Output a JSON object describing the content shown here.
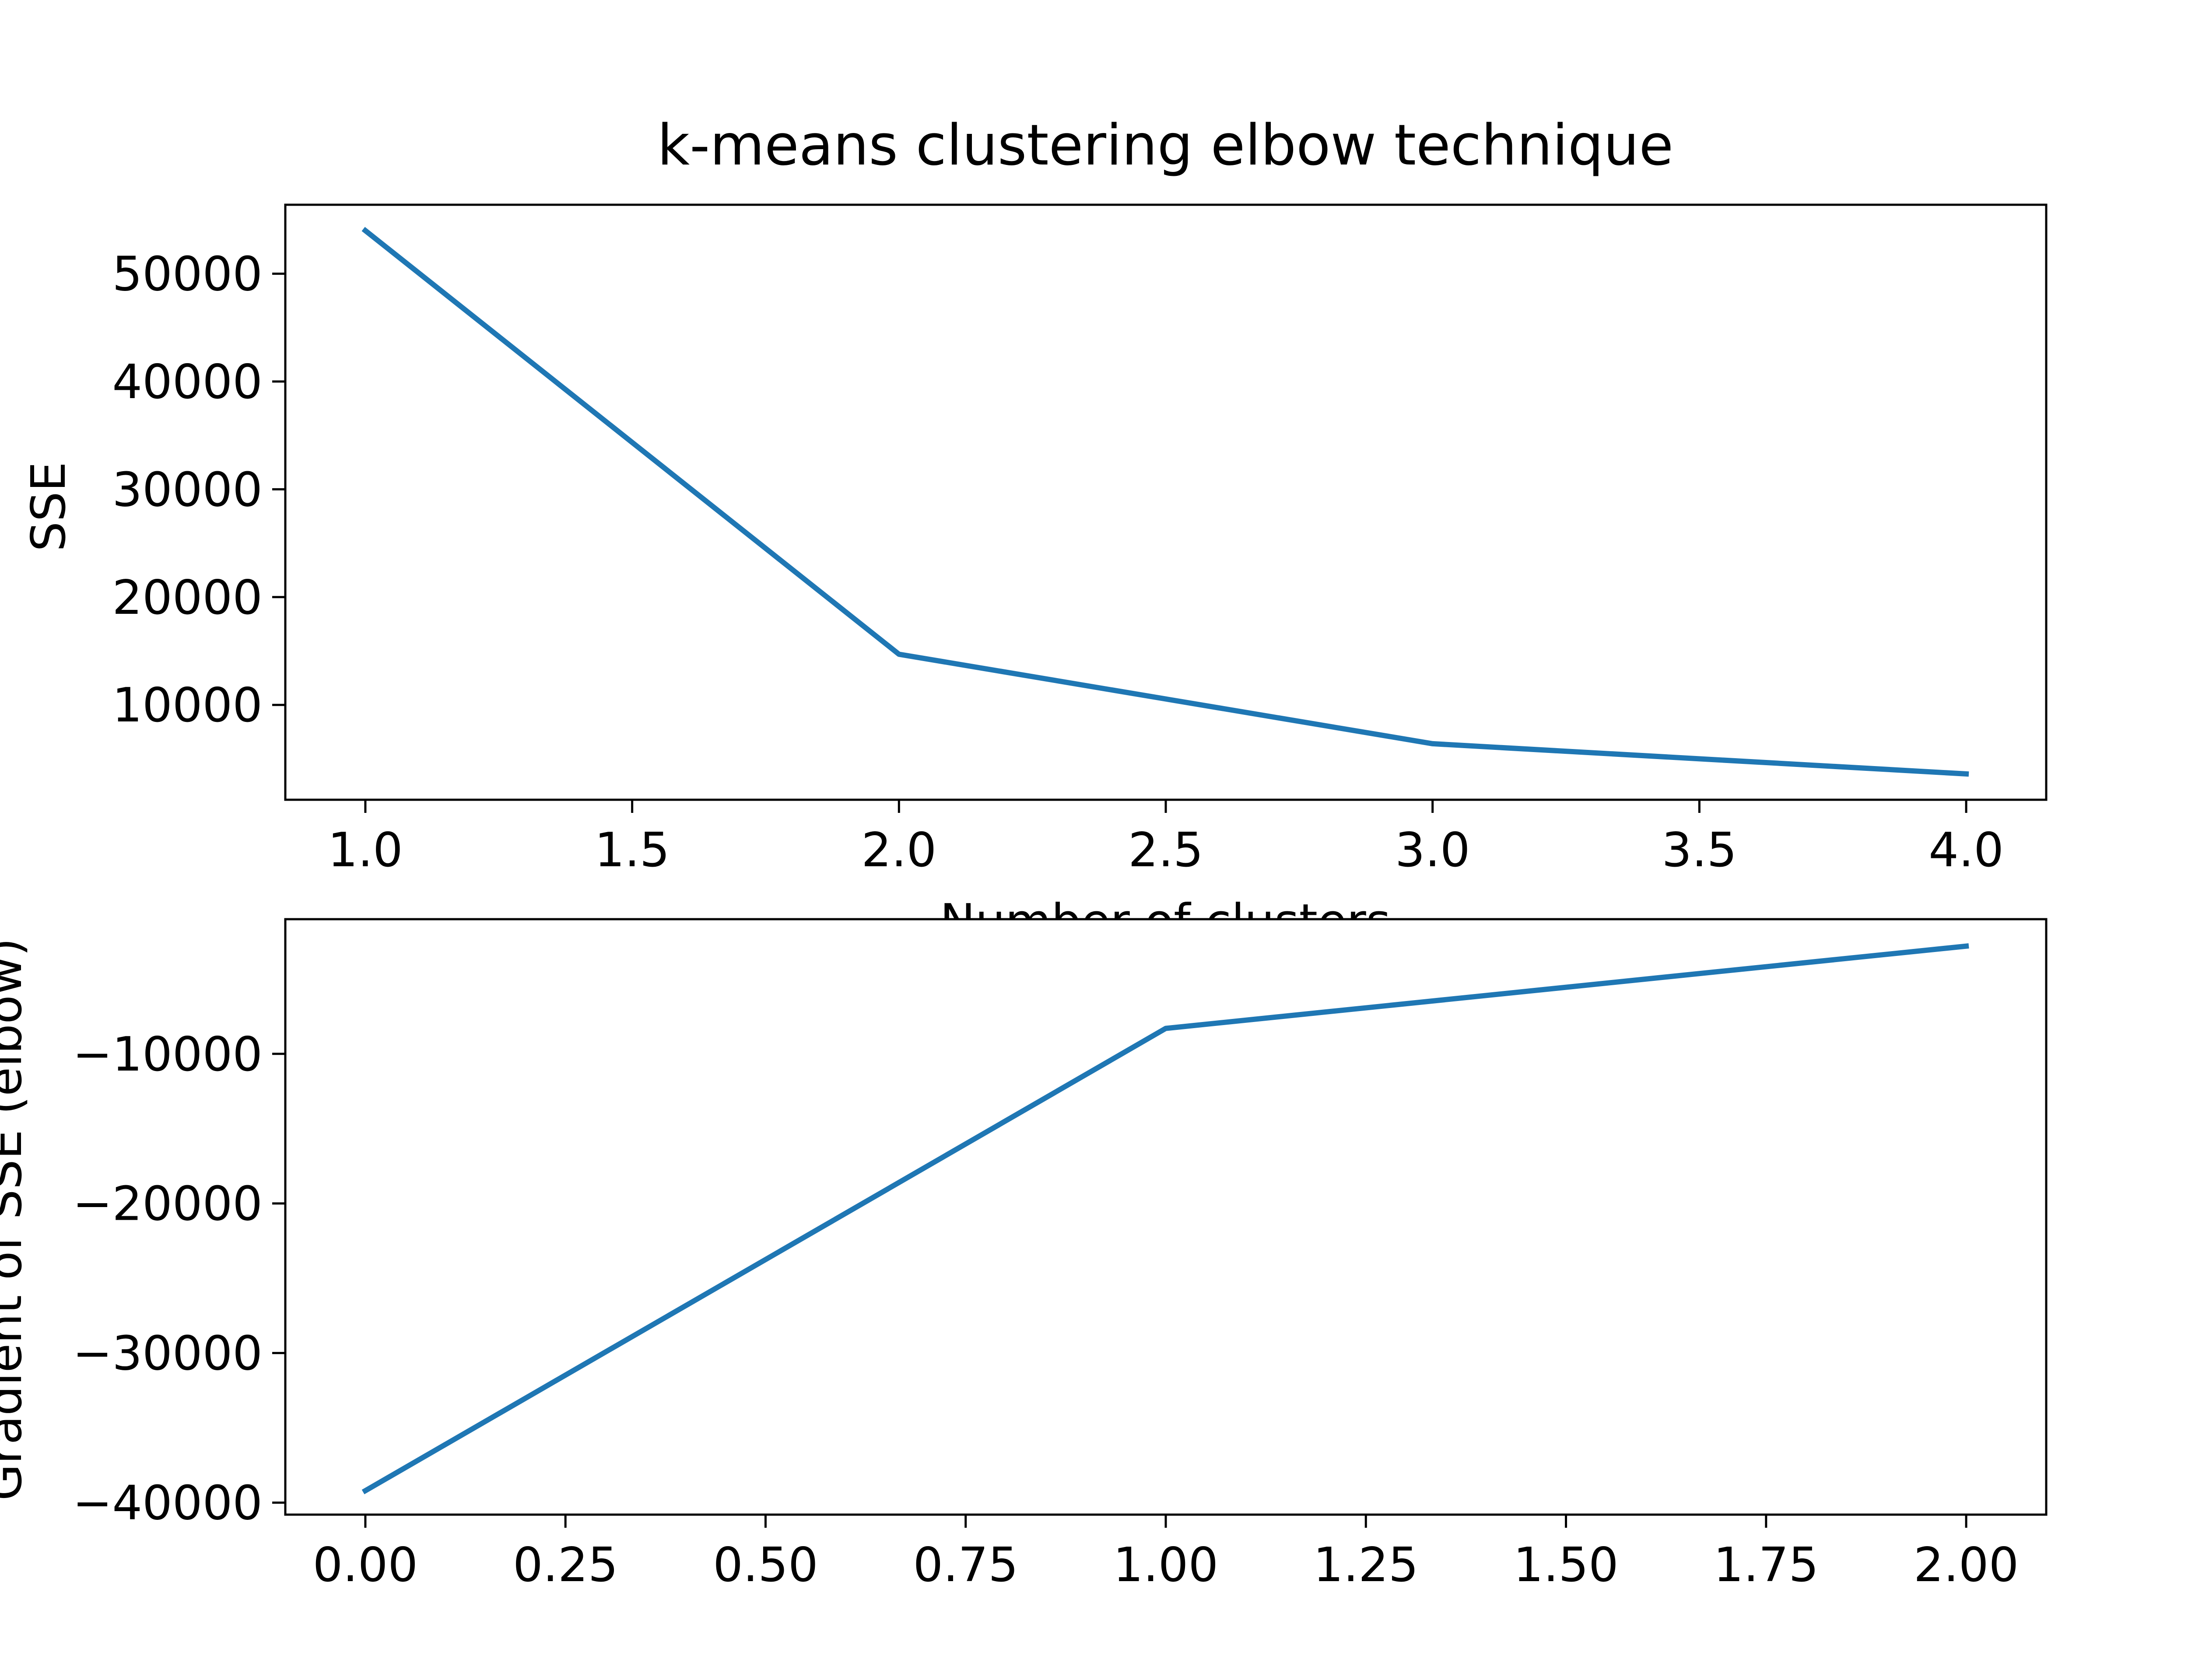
{
  "chart_data": [
    {
      "type": "line",
      "title": "k-means clustering elbow technique",
      "xlabel": "Number of clusters",
      "ylabel": "SSE",
      "x": [
        1.0,
        2.0,
        3.0,
        4.0
      ],
      "series": [
        {
          "values": [
            54000,
            14700,
            6400,
            3600
          ],
          "color": "#1f77b4"
        }
      ],
      "xlim": [
        0.85,
        4.15
      ],
      "ylim": [
        1200,
        56400
      ],
      "xticks": [
        1.0,
        1.5,
        2.0,
        2.5,
        3.0,
        3.5,
        4.0
      ],
      "xtick_labels": [
        "1.0",
        "1.5",
        "2.0",
        "2.5",
        "3.0",
        "3.5",
        "4.0"
      ],
      "yticks": [
        10000,
        20000,
        30000,
        40000,
        50000
      ],
      "ytick_labels": [
        "10000",
        "20000",
        "30000",
        "40000",
        "50000"
      ],
      "grid": false
    },
    {
      "type": "line",
      "title": "",
      "xlabel": "",
      "ylabel": "Gradient of SSE (elbow)",
      "x": [
        0.0,
        1.0,
        2.0
      ],
      "series": [
        {
          "values": [
            -39200,
            -8300,
            -2800
          ],
          "color": "#1f77b4"
        }
      ],
      "xlim": [
        -0.1,
        2.1
      ],
      "ylim": [
        -40800,
        -1000
      ],
      "xticks": [
        0.0,
        0.25,
        0.5,
        0.75,
        1.0,
        1.25,
        1.5,
        1.75,
        2.0
      ],
      "xtick_labels": [
        "0.00",
        "0.25",
        "0.50",
        "0.75",
        "1.00",
        "1.25",
        "1.50",
        "1.75",
        "2.00"
      ],
      "yticks": [
        -40000,
        -30000,
        -20000,
        -10000
      ],
      "ytick_labels": [
        "−40000",
        "−30000",
        "−20000",
        "−10000"
      ],
      "grid": false
    }
  ]
}
